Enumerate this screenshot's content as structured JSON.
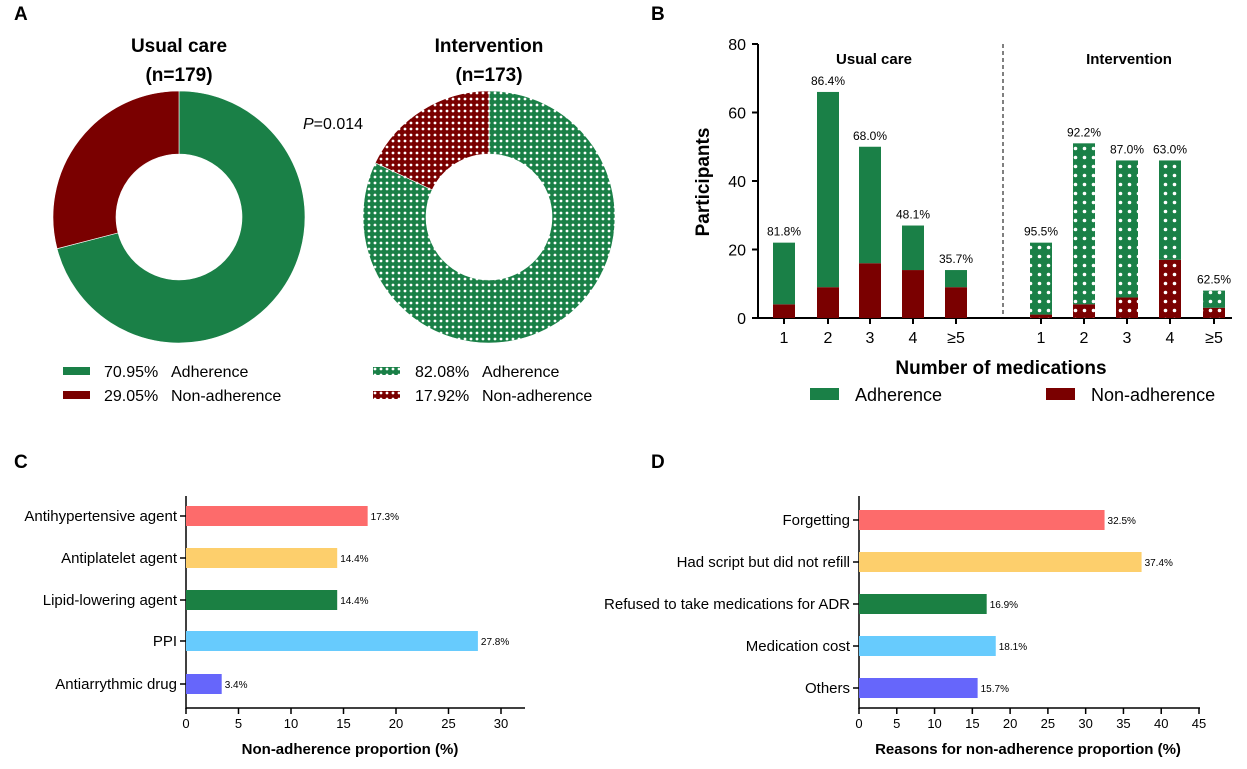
{
  "colors": {
    "green": "#1a8047",
    "red": "#7a0000",
    "c_colors": [
      "#fd6b6b",
      "#fdcf6c",
      "#1b8043",
      "#67cbfd",
      "#6666fb"
    ]
  },
  "panels": {
    "A": {
      "label": "A",
      "pvalue_prefix": "P",
      "pvalue_suffix": "=0.014"
    },
    "B": {
      "label": "B"
    },
    "C": {
      "label": "C"
    },
    "D": {
      "label": "D"
    }
  },
  "chart_data": [
    {
      "panel": "A",
      "type": "pie",
      "donut": true,
      "title_line1": "Usual care",
      "title_line2": "(n=179)",
      "slices": [
        {
          "label": "Adherence",
          "value": 70.95,
          "pattern": "solid-green"
        },
        {
          "label": "Non-adherence",
          "value": 29.05,
          "pattern": "solid-red"
        }
      ],
      "legend": [
        {
          "value_text": "70.95%",
          "label": "Adherence"
        },
        {
          "value_text": "29.05%",
          "label": "Non-adherence"
        }
      ]
    },
    {
      "panel": "A",
      "type": "pie",
      "donut": true,
      "title_line1": "Intervention",
      "title_line2": "(n=173)",
      "slices": [
        {
          "label": "Adherence",
          "value": 82.08,
          "pattern": "dotted-green"
        },
        {
          "label": "Non-adherence",
          "value": 17.92,
          "pattern": "dotted-red"
        }
      ],
      "legend": [
        {
          "value_text": "82.08%",
          "label": "Adherence"
        },
        {
          "value_text": "17.92%",
          "label": "Non-adherence"
        }
      ]
    },
    {
      "panel": "B",
      "type": "bar",
      "stacked": true,
      "ylabel": "Participants",
      "xlabel": "Number of medications",
      "ylim": [
        0,
        80
      ],
      "yticks": [
        0,
        20,
        40,
        60,
        80
      ],
      "groups": [
        {
          "name": "Usual care",
          "pattern": "solid",
          "categories": [
            "1",
            "2",
            "3",
            "4",
            "≥5"
          ],
          "adherence": [
            18,
            57,
            34,
            13,
            5
          ],
          "non_adherence": [
            4,
            9,
            16,
            14,
            9
          ],
          "labels": [
            "81.8%",
            "86.4%",
            "68.0%",
            "48.1%",
            "35.7%"
          ]
        },
        {
          "name": "Intervention",
          "pattern": "dotted",
          "categories": [
            "1",
            "2",
            "3",
            "4",
            "≥5"
          ],
          "adherence": [
            21,
            47,
            40,
            29,
            5
          ],
          "non_adherence": [
            1,
            4,
            6,
            17,
            3
          ],
          "labels": [
            "95.5%",
            "92.2%",
            "87.0%",
            "63.0%",
            "62.5%"
          ]
        }
      ],
      "legend": [
        "Adherence",
        "Non-adherence"
      ]
    },
    {
      "panel": "C",
      "type": "bar",
      "orientation": "horizontal",
      "xlabel": "Non-adherence proportion (%)",
      "xlim": [
        0,
        32
      ],
      "xticks": [
        0,
        5,
        10,
        15,
        20,
        25,
        30
      ],
      "categories": [
        "Antihypertensive agent",
        "Antiplatelet agent",
        "Lipid-lowering agent",
        "PPI",
        "Antiarrythmic drug"
      ],
      "values": [
        17.3,
        14.4,
        14.4,
        27.8,
        3.4
      ],
      "labels": [
        "17.3%",
        "14.4%",
        "14.4%",
        "27.8%",
        "3.4%"
      ]
    },
    {
      "panel": "D",
      "type": "bar",
      "orientation": "horizontal",
      "xlabel": "Reasons for non-adherence proportion (%)",
      "xlim": [
        0,
        45
      ],
      "xticks": [
        0,
        5,
        10,
        15,
        20,
        25,
        30,
        35,
        40,
        45
      ],
      "categories": [
        "Forgetting",
        "Had script but did not refill",
        "Refused to take medications for ADR",
        "Medication cost",
        "Others"
      ],
      "values": [
        32.5,
        37.4,
        16.9,
        18.1,
        15.7
      ],
      "labels": [
        "32.5%",
        "37.4%",
        "16.9%",
        "18.1%",
        "15.7%"
      ]
    }
  ]
}
